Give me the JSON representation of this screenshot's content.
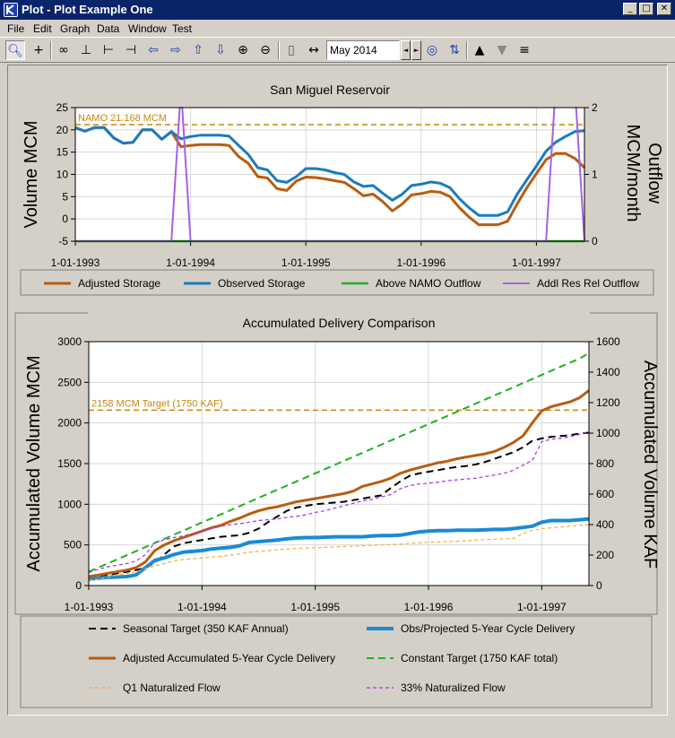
{
  "window": {
    "title": "Plot - Plot Example One",
    "controls": {
      "minimize": "_",
      "maximize": "□",
      "close": "✕"
    }
  },
  "menubar": {
    "items": [
      "File",
      "Edit",
      "Graph",
      "Data",
      "Window",
      "Test"
    ]
  },
  "toolbar": {
    "date_value": "May 2014",
    "spin_prev": "◄",
    "spin_next": "►",
    "icons": [
      "magnifier-select-icon",
      "crosshair-icon",
      "link-icon",
      "axis-icon",
      "axis-r-icon",
      "axis-s-icon",
      "arrow-left-icon",
      "arrow-right-icon",
      "arrow-up-icon",
      "arrow-down-icon",
      "zoom-in-icon",
      "zoom-out-icon",
      "panel-icon",
      "split-icon",
      "globe-icon",
      "sync-icon",
      "chart-up-icon",
      "chart-down-icon",
      "chart-list-icon"
    ]
  },
  "chart_data": [
    {
      "type": "line",
      "title": "San Miguel Reservoir",
      "ylabel": "Volume MCM",
      "y2label": "Outflow\nMCM/month",
      "ylim": [
        -5,
        25
      ],
      "y2lim": [
        0,
        2
      ],
      "yticks": [
        "-5",
        "0",
        "5",
        "10",
        "15",
        "20",
        "25"
      ],
      "y2ticks": [
        "0",
        "1",
        "2"
      ],
      "xticks": [
        "1-01-1993",
        "1-01-1994",
        "1-01-1995",
        "1-01-1996",
        "1-01-1997"
      ],
      "x_start": "Jan 1993",
      "x_end": "Apr 1997",
      "reference": {
        "label": "NAMO 21.168 MCM",
        "value": 21.168,
        "color": "#c8860a"
      },
      "grid": true,
      "legend": "bottom",
      "series": [
        {
          "name": "Adjusted Storage",
          "color": "#b85c10",
          "width": 3,
          "dash": "",
          "axis": "left",
          "values": [
            20.5,
            19.7,
            20.5,
            20.5,
            18.2,
            17,
            17.2,
            20,
            20,
            17.9,
            19.6,
            16.2,
            16.5,
            16.7,
            16.7,
            16.7,
            16.5,
            14,
            12.5,
            9.5,
            9.2,
            6.8,
            6.4,
            8.5,
            9.4,
            9.3,
            9,
            8.6,
            8.2,
            6.8,
            5.2,
            5.6,
            3.9,
            1.8,
            3.3,
            5.4,
            5.7,
            6.2,
            6,
            5,
            2.5,
            0.4,
            -1.3,
            -1.3,
            -1.3,
            -0.5,
            3.4,
            7,
            10.2,
            13.3,
            14.7,
            14.7,
            13.6,
            11.5
          ]
        },
        {
          "name": "Observed Storage",
          "color": "#1a7bbf",
          "width": 3,
          "dash": "",
          "axis": "left",
          "values": [
            20.5,
            19.7,
            20.5,
            20.5,
            18.2,
            17,
            17.2,
            20,
            20,
            17.9,
            19.6,
            18,
            18.5,
            18.8,
            18.8,
            18.8,
            18.6,
            16.5,
            14.5,
            11.5,
            11,
            8.6,
            8.2,
            9.5,
            11.3,
            11.3,
            11,
            10.4,
            10,
            8.3,
            7.3,
            7.5,
            5.8,
            4.2,
            5.5,
            7.5,
            7.8,
            8.3,
            8,
            7,
            4.5,
            2.5,
            0.8,
            0.8,
            0.8,
            1.6,
            5.6,
            8.8,
            11.9,
            15.2,
            17.2,
            18.5,
            19.6,
            19.8
          ]
        },
        {
          "name": "Above NAMO Outflow",
          "color": "#22b022",
          "width": 2.5,
          "dash": "",
          "axis": "right",
          "values": [
            0,
            0,
            0,
            0,
            0,
            0,
            0,
            0,
            0,
            0,
            0,
            0,
            0,
            0,
            0,
            0,
            0,
            0,
            0,
            0,
            0,
            0,
            0,
            0,
            0,
            0,
            0,
            0,
            0,
            0,
            0,
            0,
            0,
            0,
            0,
            0,
            0,
            0,
            0,
            0,
            0,
            0,
            0,
            0,
            0,
            0,
            0,
            0,
            0,
            0,
            0,
            0,
            0,
            0
          ]
        },
        {
          "name": "Addl Res Rel Outflow",
          "color": "#a860e0",
          "width": 2,
          "dash": "",
          "axis": "right",
          "values": [
            0,
            0,
            0,
            0,
            0,
            0,
            0,
            0,
            0,
            0,
            0,
            0,
            0,
            0,
            0,
            0,
            0,
            0,
            0,
            0,
            0,
            0,
            0,
            0,
            0,
            0,
            0,
            0,
            0,
            0,
            0,
            0,
            0,
            0,
            0,
            0,
            0,
            0,
            0,
            0,
            0,
            0,
            0,
            0,
            0,
            0,
            0,
            0,
            0,
            0,
            0,
            0,
            0,
            0
          ],
          "spikes": [
            {
              "from": 10,
              "to": 12,
              "peak": 2.3
            },
            {
              "from": 49,
              "to": 53,
              "peak": 2.3
            }
          ]
        }
      ]
    },
    {
      "type": "line",
      "title": "Accumulated Delivery Comparison",
      "ylabel": "Accumulated Volume MCM",
      "y2label": "Accumulated Volume KAF",
      "ylim": [
        0,
        3000
      ],
      "y2lim": [
        0,
        1600
      ],
      "yticks": [
        "0",
        "500",
        "1000",
        "1500",
        "2000",
        "2500",
        "3000"
      ],
      "y2ticks": [
        "0",
        "200",
        "400",
        "600",
        "800",
        "1000",
        "1200",
        "1400",
        "1600"
      ],
      "xticks": [
        "1-01-1993",
        "1-01-1994",
        "1-01-1995",
        "1-01-1996",
        "1-01-1997"
      ],
      "x_start": "Jan 1993",
      "x_end": "Apr 1997",
      "reference": {
        "label": "2158 MCM Target (1750 KAF)",
        "value": 2158,
        "color": "#c8860a"
      },
      "grid": true,
      "legend": "bottom",
      "series": [
        {
          "name": "Seasonal Target (350 KAF Annual)",
          "color": "#000000",
          "width": 2,
          "dash": "8,5",
          "values": [
            90,
            110,
            130,
            150,
            170,
            190,
            220,
            280,
            380,
            480,
            520,
            540,
            560,
            580,
            600,
            610,
            620,
            650,
            700,
            780,
            850,
            920,
            960,
            980,
            1000,
            1010,
            1020,
            1030,
            1050,
            1070,
            1090,
            1110,
            1200,
            1280,
            1350,
            1380,
            1400,
            1420,
            1440,
            1460,
            1470,
            1490,
            1520,
            1560,
            1600,
            1640,
            1700,
            1780,
            1810,
            1830,
            1840,
            1850,
            1870,
            1880
          ]
        },
        {
          "name": "Obs/Projected 5-Year Cycle Delivery",
          "color": "#1a8ad6",
          "width": 4,
          "dash": "",
          "values": [
            80,
            90,
            100,
            105,
            110,
            130,
            220,
            310,
            340,
            380,
            410,
            420,
            430,
            450,
            460,
            470,
            490,
            530,
            540,
            550,
            560,
            575,
            585,
            590,
            590,
            595,
            600,
            600,
            600,
            600,
            610,
            615,
            615,
            620,
            640,
            660,
            670,
            675,
            675,
            680,
            680,
            680,
            685,
            690,
            690,
            700,
            715,
            730,
            780,
            800,
            800,
            800,
            810,
            820
          ]
        },
        {
          "name": "Adjusted Accumulated 5-Year Cycle Delivery",
          "color": "#b85c10",
          "width": 3,
          "dash": "",
          "values": [
            110,
            130,
            150,
            170,
            190,
            220,
            290,
            430,
            500,
            550,
            590,
            630,
            670,
            710,
            740,
            790,
            830,
            880,
            920,
            950,
            970,
            1000,
            1030,
            1050,
            1070,
            1090,
            1110,
            1130,
            1160,
            1220,
            1250,
            1280,
            1320,
            1380,
            1420,
            1450,
            1480,
            1510,
            1530,
            1560,
            1580,
            1600,
            1620,
            1650,
            1700,
            1760,
            1840,
            2000,
            2150,
            2200,
            2230,
            2260,
            2310,
            2400
          ]
        },
        {
          "name": "Constant Target (1750 KAF total)",
          "color": "#22b022",
          "width": 2,
          "dash": "8,5",
          "values": [
            170,
            221,
            271,
            321,
            372,
            422,
            473,
            524,
            574,
            624,
            675,
            725,
            776,
            826,
            876,
            927,
            977,
            1028,
            1078,
            1129,
            1179,
            1229,
            1280,
            1330,
            1381,
            1431,
            1481,
            1532,
            1582,
            1633,
            1683,
            1734,
            1784,
            1834,
            1885,
            1935,
            1986,
            2036,
            2087,
            2137,
            2187,
            2238,
            2288,
            2339,
            2389,
            2439,
            2490,
            2540,
            2591,
            2641,
            2692,
            2742,
            2792,
            2860
          ]
        },
        {
          "name": "Q1 Naturalized Flow",
          "color": "#f0b040",
          "width": 1.2,
          "dash": "4,3",
          "values": [
            60,
            80,
            100,
            130,
            150,
            170,
            210,
            240,
            270,
            300,
            320,
            330,
            340,
            350,
            360,
            375,
            390,
            410,
            420,
            430,
            440,
            450,
            455,
            460,
            465,
            470,
            475,
            480,
            485,
            490,
            495,
            500,
            505,
            510,
            520,
            525,
            530,
            535,
            540,
            545,
            550,
            560,
            565,
            570,
            575,
            580,
            640,
            680,
            700,
            710,
            720,
            730,
            740,
            750
          ]
        },
        {
          "name": "33% Naturalized Flow",
          "color": "#a830e8",
          "width": 1.2,
          "dash": "4,3",
          "values": [
            160,
            200,
            230,
            250,
            270,
            300,
            380,
            530,
            560,
            590,
            610,
            640,
            670,
            700,
            730,
            750,
            760,
            780,
            800,
            810,
            820,
            840,
            850,
            870,
            900,
            920,
            950,
            980,
            1010,
            1040,
            1060,
            1090,
            1120,
            1190,
            1230,
            1250,
            1260,
            1270,
            1290,
            1300,
            1310,
            1320,
            1340,
            1360,
            1380,
            1420,
            1480,
            1540,
            1770,
            1800,
            1810,
            1830,
            1860,
            1890
          ]
        }
      ]
    }
  ]
}
